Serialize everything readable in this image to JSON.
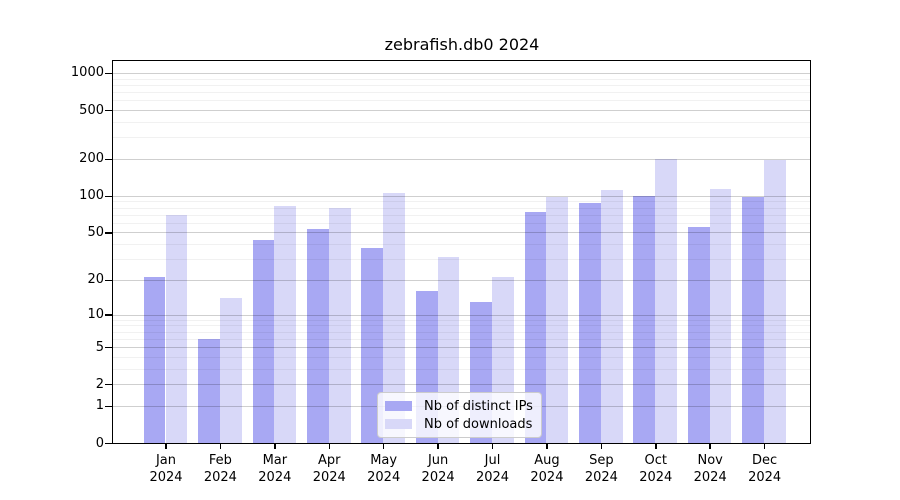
{
  "title": "zebrafish.db0 2024",
  "chart_data": {
    "type": "bar",
    "title": "zebrafish.db0 2024",
    "categories": [
      "Jan 2024",
      "Feb 2024",
      "Mar 2024",
      "Apr 2024",
      "May 2024",
      "Jun 2024",
      "Jul 2024",
      "Aug 2024",
      "Sep 2024",
      "Oct 2024",
      "Nov 2024",
      "Dec 2024"
    ],
    "x_tick_months": [
      "Jan",
      "Feb",
      "Mar",
      "Apr",
      "May",
      "Jun",
      "Jul",
      "Aug",
      "Sep",
      "Oct",
      "Nov",
      "Dec"
    ],
    "x_tick_year": "2024",
    "series": [
      {
        "name": "Nb of distinct IPs",
        "color": "#a8a8f3",
        "values": [
          21,
          6,
          43,
          53,
          37,
          16,
          13,
          73,
          87,
          100,
          55,
          97
        ]
      },
      {
        "name": "Nb of downloads",
        "color": "#d8d8f8",
        "values": [
          70,
          14,
          83,
          79,
          105,
          31,
          21,
          98,
          112,
          200,
          113,
          195
        ]
      }
    ],
    "y_scale": "log10(1+x)",
    "y_ticks": [
      0,
      1,
      2,
      5,
      10,
      20,
      50,
      100,
      200,
      500,
      1000
    ],
    "y_minor_ticks": [
      3,
      4,
      6,
      7,
      8,
      9,
      30,
      40,
      60,
      70,
      80,
      90,
      300,
      400,
      600,
      700,
      800,
      900
    ],
    "ylim": [
      0,
      1250
    ],
    "grid": true,
    "legend_position": "lower center",
    "xlabel": "",
    "ylabel": ""
  },
  "colors": {
    "distinct_ips_bar": "#a8a8f3",
    "downloads_bar": "#d8d8f8",
    "major_grid": "#cdcdcd",
    "minor_grid": "#ececec",
    "axis": "#000000",
    "background": "#ffffff"
  }
}
